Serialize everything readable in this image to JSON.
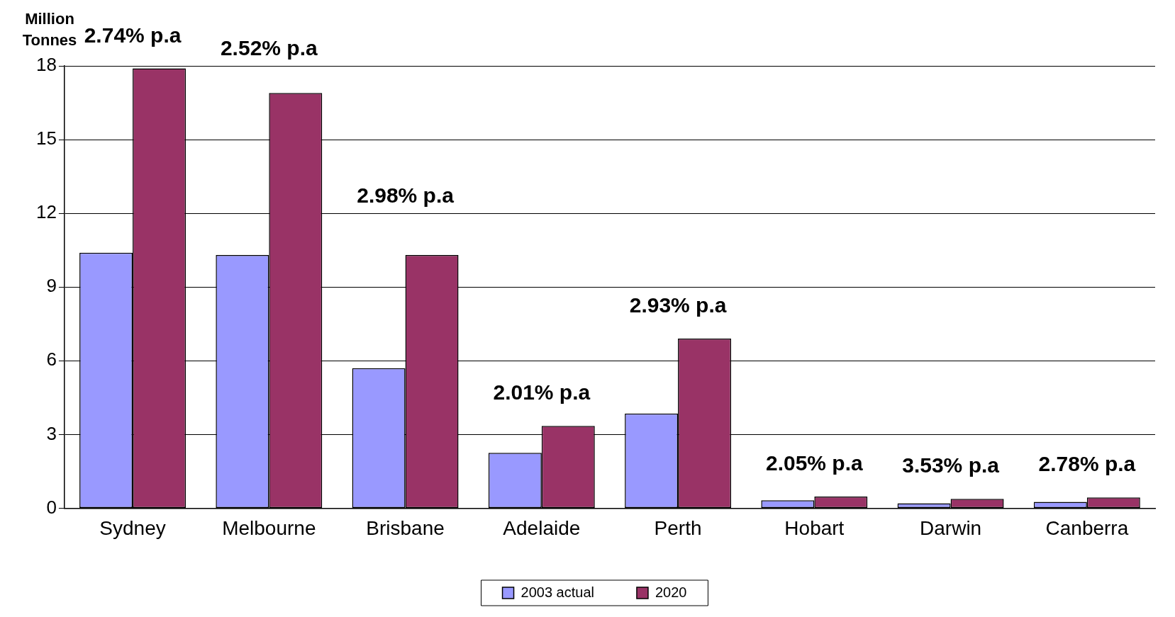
{
  "chart_data": {
    "type": "bar",
    "ylabel": "Million Tonnes",
    "categories": [
      "Sydney",
      "Melbourne",
      "Brisbane",
      "Adelaide",
      "Perth",
      "Hobart",
      "Darwin",
      "Canberra"
    ],
    "series": [
      {
        "name": "2003 actual",
        "color": "#9999ff",
        "values": [
          10.4,
          10.3,
          5.7,
          2.25,
          3.85,
          0.32,
          0.2,
          0.26
        ]
      },
      {
        "name": "2020",
        "color": "#993366",
        "values": [
          17.9,
          16.9,
          10.3,
          3.35,
          6.9,
          0.47,
          0.38,
          0.44
        ]
      }
    ],
    "ylim": [
      0,
      18
    ],
    "yticks": [
      0,
      3,
      6,
      9,
      12,
      15,
      18
    ],
    "grid": "y",
    "legend": "bottom",
    "annotations": [
      "2.74% p.a",
      "2.52% p.a",
      "2.98% p.a",
      "2.01% p.a",
      "2.93% p.a",
      "2.05% p.a",
      "3.53% p.a",
      "2.78% p.a"
    ]
  }
}
